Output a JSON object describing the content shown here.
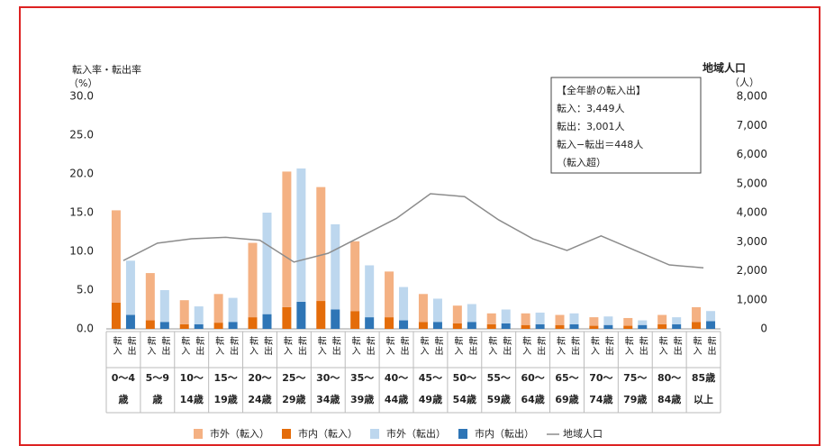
{
  "chart_data": {
    "type": "bar",
    "y_label": "転入率・転出率",
    "y_unit": "（%）",
    "y2_label": "地域人口",
    "y2_unit": "（人）",
    "categories": [
      [
        "0～4",
        "歳"
      ],
      [
        "5～9",
        "歳"
      ],
      [
        "10～",
        "14歳"
      ],
      [
        "15～",
        "19歳"
      ],
      [
        "20～",
        "24歳"
      ],
      [
        "25～",
        "29歳"
      ],
      [
        "30～",
        "34歳"
      ],
      [
        "35～",
        "39歳"
      ],
      [
        "40～",
        "44歳"
      ],
      [
        "45～",
        "49歳"
      ],
      [
        "50～",
        "54歳"
      ],
      [
        "55～",
        "59歳"
      ],
      [
        "60～",
        "64歳"
      ],
      [
        "65～",
        "69歳"
      ],
      [
        "70～",
        "74歳"
      ],
      [
        "75～",
        "79歳"
      ],
      [
        "80～",
        "84歳"
      ],
      [
        "85歳",
        "以上"
      ]
    ],
    "bar_labels": [
      "転入",
      "転出"
    ],
    "series": [
      {
        "name": "市外（転入）",
        "color": "#f4b183",
        "values": [
          11.9,
          6.1,
          3.1,
          3.7,
          9.6,
          17.5,
          14.7,
          9.0,
          5.9,
          3.6,
          2.3,
          1.4,
          1.5,
          1.3,
          1.1,
          1.0,
          1.2,
          1.9
        ]
      },
      {
        "name": "市内（転入）",
        "color": "#e46c0a",
        "values": [
          3.4,
          1.1,
          0.6,
          0.8,
          1.5,
          2.8,
          3.6,
          2.3,
          1.5,
          0.9,
          0.7,
          0.6,
          0.5,
          0.5,
          0.4,
          0.4,
          0.6,
          0.9
        ]
      },
      {
        "name": "市外（転出）",
        "color": "#bdd7ee",
        "values": [
          7.0,
          4.1,
          2.3,
          3.1,
          13.1,
          17.2,
          11.0,
          6.7,
          4.3,
          3.0,
          2.3,
          1.8,
          1.5,
          1.4,
          1.1,
          0.6,
          0.9,
          1.3
        ]
      },
      {
        "name": "市内（転出）",
        "color": "#2e75b6",
        "values": [
          1.8,
          0.9,
          0.6,
          0.9,
          1.9,
          3.5,
          2.5,
          1.5,
          1.1,
          0.9,
          0.9,
          0.7,
          0.6,
          0.6,
          0.5,
          0.5,
          0.6,
          1.0
        ]
      },
      {
        "name": "地域人口",
        "color": "#8c8c8c",
        "axis": "y2",
        "type": "line",
        "values": [
          2350,
          2950,
          3100,
          3150,
          3050,
          2300,
          2600,
          3200,
          3800,
          4650,
          4550,
          3750,
          3100,
          2700,
          3200,
          2700,
          2200,
          2100
        ]
      }
    ],
    "ylim": [
      0,
      30
    ],
    "yticks": [
      {
        "value": 0,
        "label": "0.0"
      },
      {
        "value": 5,
        "label": "5.0"
      },
      {
        "value": 10,
        "label": "10.0"
      },
      {
        "value": 15,
        "label": "15.0"
      },
      {
        "value": 20,
        "label": "20.0"
      },
      {
        "value": 25,
        "label": "25.0"
      },
      {
        "value": 30,
        "label": "30.0"
      }
    ],
    "y2lim": [
      0,
      8000
    ],
    "y2ticks": [
      0,
      {
        "value": 1000,
        "label": "1,000"
      },
      {
        "value": 2000,
        "label": "2,000"
      },
      {
        "value": 3000,
        "label": "3,000"
      },
      {
        "value": 4000,
        "label": "4,000"
      },
      {
        "value": 5000,
        "label": "5,000"
      },
      {
        "value": 6000,
        "label": "6,000"
      },
      {
        "value": 7000,
        "label": "7,000"
      },
      {
        "value": 8000,
        "label": "8,000"
      }
    ],
    "grid": false,
    "annotation": [
      "【全年齢の転入出】",
      "転入：3,449人",
      "転出：3,001人",
      "転入−転出＝448人",
      "（転入超）"
    ]
  }
}
